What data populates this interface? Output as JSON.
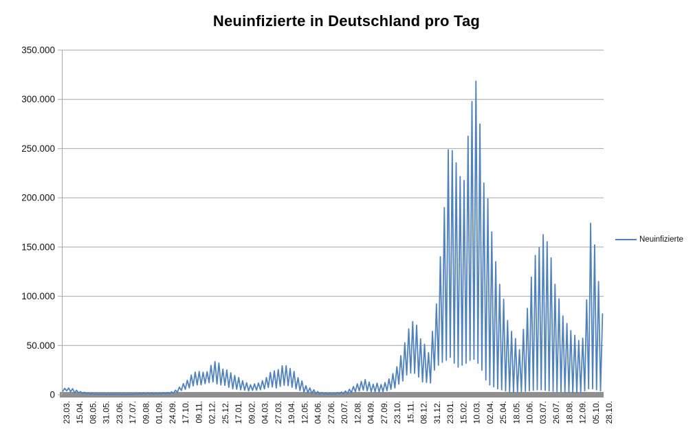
{
  "chart_data": {
    "type": "line",
    "title": "Neuinfizierte in Deutschland pro Tag",
    "grid": true,
    "legend_position": "right",
    "ylim": [
      0,
      350000
    ],
    "y_tick_step": 50000,
    "y_tick_labels": [
      "0",
      "50.000",
      "100.000",
      "150.000",
      "200.000",
      "250.000",
      "300.000",
      "350.000"
    ],
    "x_tick_labels": [
      "23.03.",
      "15.04.",
      "08.05.",
      "31.05.",
      "23.06.",
      "17.07.",
      "09.08.",
      "01.09.",
      "24.09.",
      "17.10.",
      "09.11.",
      "02.12.",
      "25.12.",
      "17.01.",
      "09.02.",
      "04.03.",
      "27.03.",
      "19.04.",
      "12.05.",
      "04.06.",
      "27.06.",
      "20.07.",
      "12.08.",
      "04.09.",
      "27.09.",
      "23.10.",
      "15.11.",
      "08.12.",
      "31.12.",
      "23.01.",
      "15.02.",
      "10.03.",
      "02.04.",
      "25.04.",
      "18.05.",
      "10.06.",
      "03.07.",
      "26.07.",
      "18.08.",
      "12.09.",
      "05.10.",
      "28.10."
    ],
    "colors": {
      "series": "#4F81BD",
      "gridline": "#A6A6A6",
      "axis_line": "#A6A6A6",
      "axis_bar": "#8F8F8F",
      "text": "#111111"
    },
    "series": [
      {
        "name": "Neuinfizierte",
        "color": "#4F81BD",
        "weekly_envelope": {
          "note": "daily reported new infections, one [weekly-min, weekly-max] pair per week from 23.03.2020 to 28.10.2022; line oscillates weekly between these bounds",
          "weeks": [
            [
              3500,
              6500
            ],
            [
              4000,
              6800
            ],
            [
              3000,
              6200
            ],
            [
              2000,
              4500
            ],
            [
              1800,
              3200
            ],
            [
              1200,
              2600
            ],
            [
              700,
              1800
            ],
            [
              500,
              1400
            ],
            [
              400,
              1200
            ],
            [
              300,
              900
            ],
            [
              300,
              900
            ],
            [
              200,
              800
            ],
            [
              300,
              1000
            ],
            [
              300,
              900
            ],
            [
              300,
              800
            ],
            [
              200,
              700
            ],
            [
              300,
              800
            ],
            [
              300,
              1000
            ],
            [
              400,
              1200
            ],
            [
              500,
              1300
            ],
            [
              600,
              1600
            ],
            [
              700,
              2000
            ],
            [
              600,
              1800
            ],
            [
              600,
              1600
            ],
            [
              500,
              1900
            ],
            [
              700,
              2200
            ],
            [
              900,
              2400
            ],
            [
              1000,
              2900
            ],
            [
              1500,
              4700
            ],
            [
              2500,
              7800
            ],
            [
              4300,
              11300
            ],
            [
              5600,
              14700
            ],
            [
              7000,
              20000
            ],
            [
              9000,
              23000
            ],
            [
              10000,
              23600
            ],
            [
              10100,
              22900
            ],
            [
              11200,
              23400
            ],
            [
              12300,
              29900
            ],
            [
              13000,
              33700
            ],
            [
              10900,
              32200
            ],
            [
              9900,
              26000
            ],
            [
              9500,
              25200
            ],
            [
              7500,
              22300
            ],
            [
              6000,
              19600
            ],
            [
              5600,
              17500
            ],
            [
              5000,
              14200
            ],
            [
              4500,
              12200
            ],
            [
              3900,
              10200
            ],
            [
              4400,
              11000
            ],
            [
              4700,
              11900
            ],
            [
              5000,
              14300
            ],
            [
              5900,
              17500
            ],
            [
              7400,
              22700
            ],
            [
              7900,
              24300
            ],
            [
              6900,
              25500
            ],
            [
              8500,
              29400
            ],
            [
              9600,
              29500
            ],
            [
              9200,
              26700
            ],
            [
              7500,
              23700
            ],
            [
              5900,
              17400
            ],
            [
              4200,
              14000
            ],
            [
              2600,
              9200
            ],
            [
              1900,
              7000
            ],
            [
              1300,
              5000
            ],
            [
              900,
              3300
            ],
            [
              500,
              2400
            ],
            [
              400,
              1600
            ],
            [
              400,
              1300
            ],
            [
              500,
              1500
            ],
            [
              500,
              2200
            ],
            [
              800,
              2800
            ],
            [
              1000,
              3800
            ],
            [
              1200,
              5600
            ],
            [
              2100,
              8400
            ],
            [
              3000,
              11100
            ],
            [
              3800,
              13500
            ],
            [
              4700,
              15400
            ],
            [
              3900,
              12900
            ],
            [
              3000,
              10700
            ],
            [
              3000,
              11800
            ],
            [
              2700,
              10400
            ],
            [
              3000,
              12400
            ],
            [
              4100,
              16100
            ],
            [
              5500,
              21500
            ],
            [
              6900,
              28500
            ],
            [
              10800,
              39700
            ],
            [
              14000,
              52800
            ],
            [
              20000,
              66900
            ],
            [
              22000,
              74300
            ],
            [
              21700,
              70600
            ],
            [
              18000,
              56700
            ],
            [
              13000,
              51300
            ],
            [
              12500,
              42800
            ],
            [
              12000,
              64300
            ],
            [
              25000,
              92200
            ],
            [
              30000,
              140200
            ],
            [
              33000,
              190100
            ],
            [
              35000,
              248800
            ],
            [
              38000,
              247900
            ],
            [
              32000,
              235600
            ],
            [
              28000,
              221500
            ],
            [
              30000,
              217600
            ],
            [
              32000,
              262600
            ],
            [
              35000,
              297800
            ],
            [
              36000,
              318400
            ],
            [
              32000,
              274900
            ],
            [
              25000,
              215000
            ],
            [
              15000,
              198900
            ],
            [
              10000,
              165400
            ],
            [
              8000,
              135200
            ],
            [
              6000,
              112200
            ],
            [
              5000,
              97000
            ],
            [
              4000,
              75400
            ],
            [
              3000,
              64400
            ],
            [
              2500,
              57100
            ],
            [
              2500,
              45800
            ],
            [
              3000,
              66400
            ],
            [
              3500,
              87700
            ],
            [
              4000,
              119400
            ],
            [
              4500,
              141400
            ],
            [
              5000,
              149600
            ],
            [
              5000,
              162600
            ],
            [
              4500,
              155400
            ],
            [
              4000,
              139000
            ],
            [
              3500,
              112200
            ],
            [
              3000,
              97300
            ],
            [
              3000,
              80100
            ],
            [
              2500,
              72400
            ],
            [
              2500,
              65200
            ],
            [
              2000,
              60400
            ],
            [
              2000,
              55100
            ],
            [
              2500,
              57400
            ],
            [
              4000,
              96400
            ],
            [
              6000,
              174100
            ],
            [
              6000,
              152300
            ],
            [
              5000,
              115000
            ],
            [
              4000,
              82100
            ]
          ]
        }
      }
    ]
  },
  "legend": {
    "label": "Neuinfizierte"
  }
}
